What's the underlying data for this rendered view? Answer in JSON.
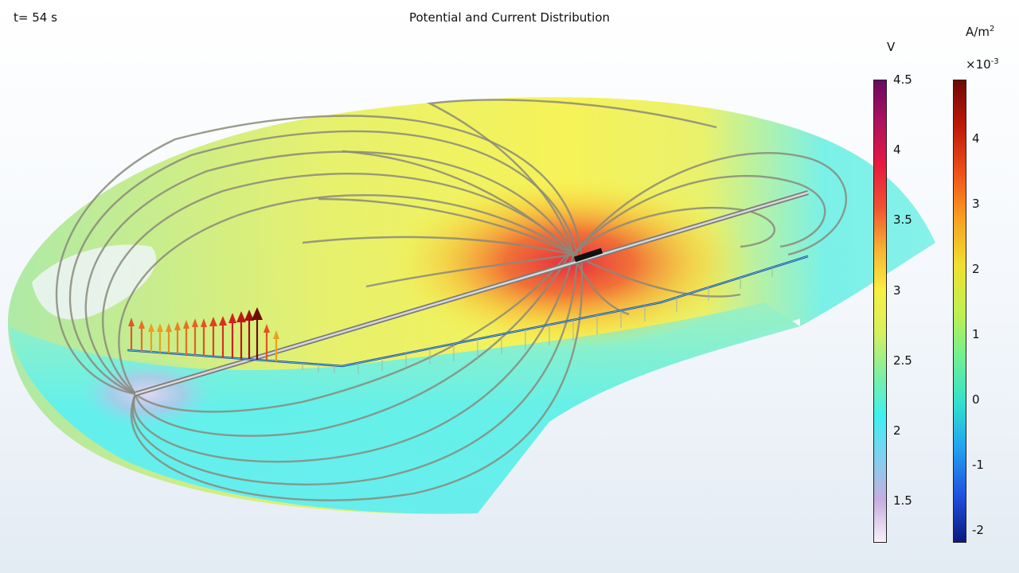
{
  "header": {
    "time_prefix": "t=",
    "time_value": "54",
    "time_unit": "s",
    "title": "Potential and Current Distribution"
  },
  "legend_potential": {
    "unit": "V",
    "ticks": [
      "4.5",
      "4",
      "3.5",
      "3",
      "2.5",
      "2",
      "1.5"
    ],
    "range": [
      1.2,
      4.5
    ],
    "colors": [
      "#f7f0fa",
      "#c7aee0",
      "#7fd0f0",
      "#3ff0f0",
      "#7ff0a0",
      "#d8f060",
      "#f8f040",
      "#f8b030",
      "#f05030",
      "#e81840",
      "#b01060",
      "#6a0a60"
    ]
  },
  "legend_current": {
    "unit_base": "A/m",
    "unit_exp": "2",
    "scale_base": "×10",
    "scale_exp": "-3",
    "ticks": [
      "4",
      "3",
      "2",
      "1",
      "0",
      "-1",
      "-2"
    ],
    "range": [
      -2.2,
      4.9
    ],
    "colors": [
      "#0a1a80",
      "#2050e0",
      "#20a0f0",
      "#30e0d0",
      "#70f090",
      "#c0f050",
      "#f0e030",
      "#f8a020",
      "#f05018",
      "#c01808",
      "#6e0a04"
    ]
  }
}
